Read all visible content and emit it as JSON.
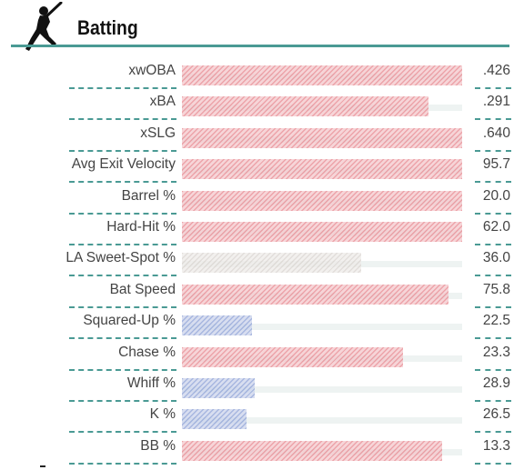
{
  "section": {
    "title": "Batting",
    "icon": "batter-silhouette-icon"
  },
  "colors": {
    "accent": "#4a9a94",
    "hot": "#e8868e",
    "neutral": "#d9d3cf",
    "cold": "#8b9fd6"
  },
  "stats": [
    {
      "label": "xwOBA",
      "value": ".426",
      "pct": 1.0,
      "tone": "hot"
    },
    {
      "label": "xBA",
      "value": ".291",
      "pct": 0.88,
      "tone": "hot"
    },
    {
      "label": "xSLG",
      "value": ".640",
      "pct": 1.0,
      "tone": "hot"
    },
    {
      "label": "Avg Exit Velocity",
      "value": "95.7",
      "pct": 1.0,
      "tone": "hot"
    },
    {
      "label": "Barrel %",
      "value": "20.0",
      "pct": 1.0,
      "tone": "hot"
    },
    {
      "label": "Hard-Hit %",
      "value": "62.0",
      "pct": 1.0,
      "tone": "hot"
    },
    {
      "label": "LA Sweet-Spot %",
      "value": "36.0",
      "pct": 0.64,
      "tone": "neutral"
    },
    {
      "label": "Bat Speed",
      "value": "75.8",
      "pct": 0.95,
      "tone": "hot"
    },
    {
      "label": "Squared-Up %",
      "value": "22.5",
      "pct": 0.25,
      "tone": "cold"
    },
    {
      "label": "Chase %",
      "value": "23.3",
      "pct": 0.79,
      "tone": "hot"
    },
    {
      "label": "Whiff %",
      "value": "28.9",
      "pct": 0.26,
      "tone": "cold"
    },
    {
      "label": "K %",
      "value": "26.5",
      "pct": 0.23,
      "tone": "cold"
    },
    {
      "label": "BB %",
      "value": "13.3",
      "pct": 0.93,
      "tone": "hot"
    }
  ]
}
